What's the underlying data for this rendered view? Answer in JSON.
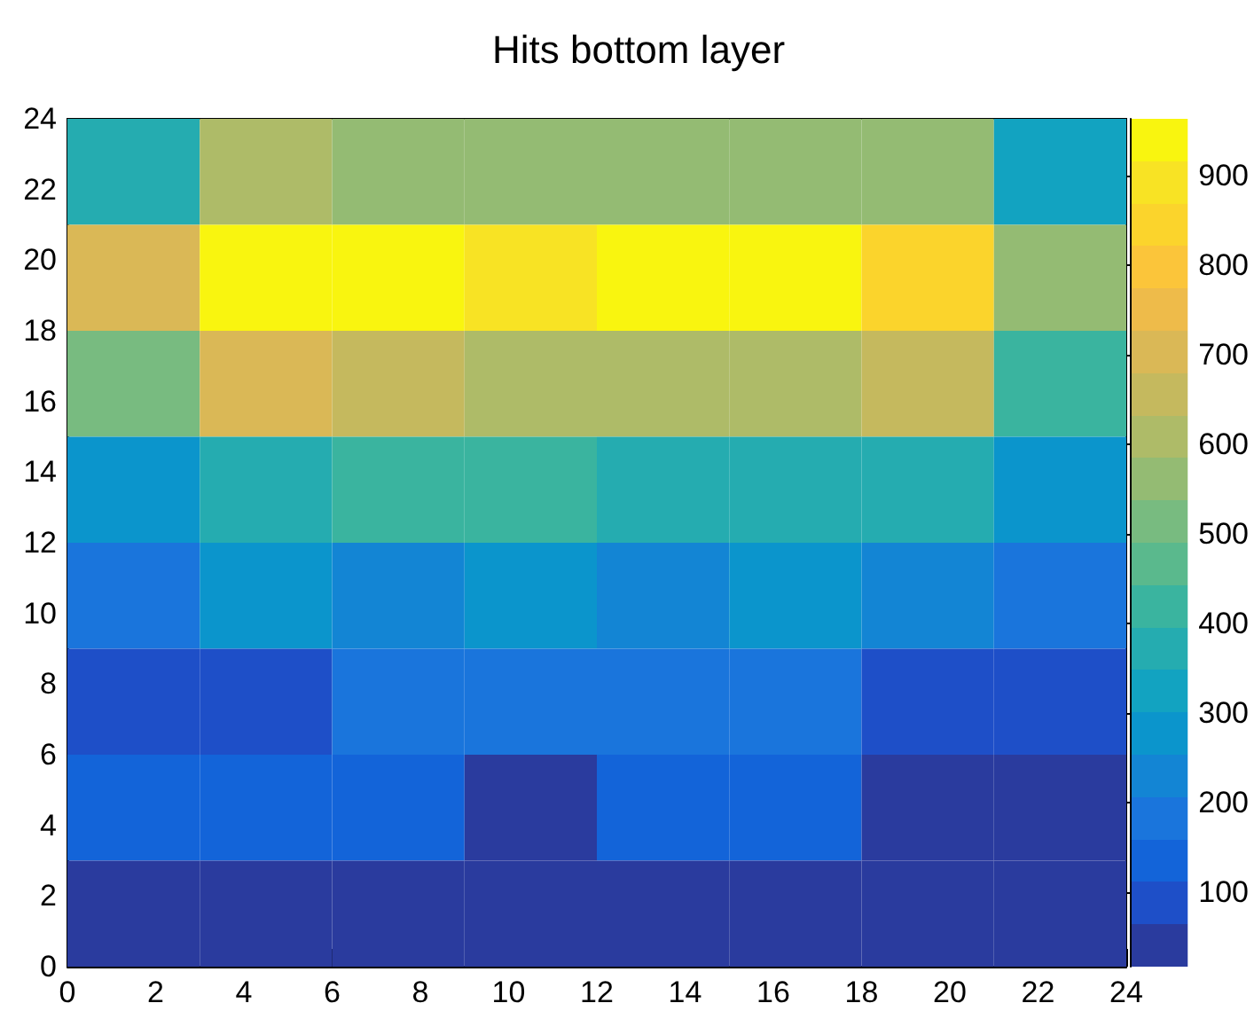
{
  "chart_data": {
    "type": "heatmap",
    "title": "Hits bottom layer",
    "xlim": [
      0,
      24
    ],
    "xticks": [
      0,
      2,
      4,
      6,
      8,
      10,
      12,
      14,
      16,
      18,
      20,
      22,
      24
    ],
    "ylim": [
      0,
      24
    ],
    "yticks": [
      0,
      2,
      4,
      6,
      8,
      10,
      12,
      14,
      16,
      18,
      20,
      22,
      24
    ],
    "cells": [
      [
        380,
        610,
        560,
        560,
        560,
        560,
        560,
        330
      ],
      [
        720,
        945,
        945,
        900,
        945,
        945,
        850,
        560
      ],
      [
        520,
        680,
        650,
        610,
        610,
        610,
        650,
        400
      ],
      [
        290,
        370,
        420,
        420,
        380,
        380,
        370,
        290
      ],
      [
        200,
        260,
        220,
        270,
        220,
        260,
        220,
        170
      ],
      [
        110,
        110,
        170,
        170,
        170,
        170,
        110,
        110
      ],
      [
        120,
        120,
        120,
        40,
        120,
        120,
        40,
        40
      ],
      [
        30,
        30,
        30,
        30,
        30,
        30,
        30,
        30
      ]
    ],
    "clim": [
      17,
      963
    ],
    "cticks": [
      100,
      200,
      300,
      400,
      500,
      600,
      700,
      800,
      900
    ]
  }
}
